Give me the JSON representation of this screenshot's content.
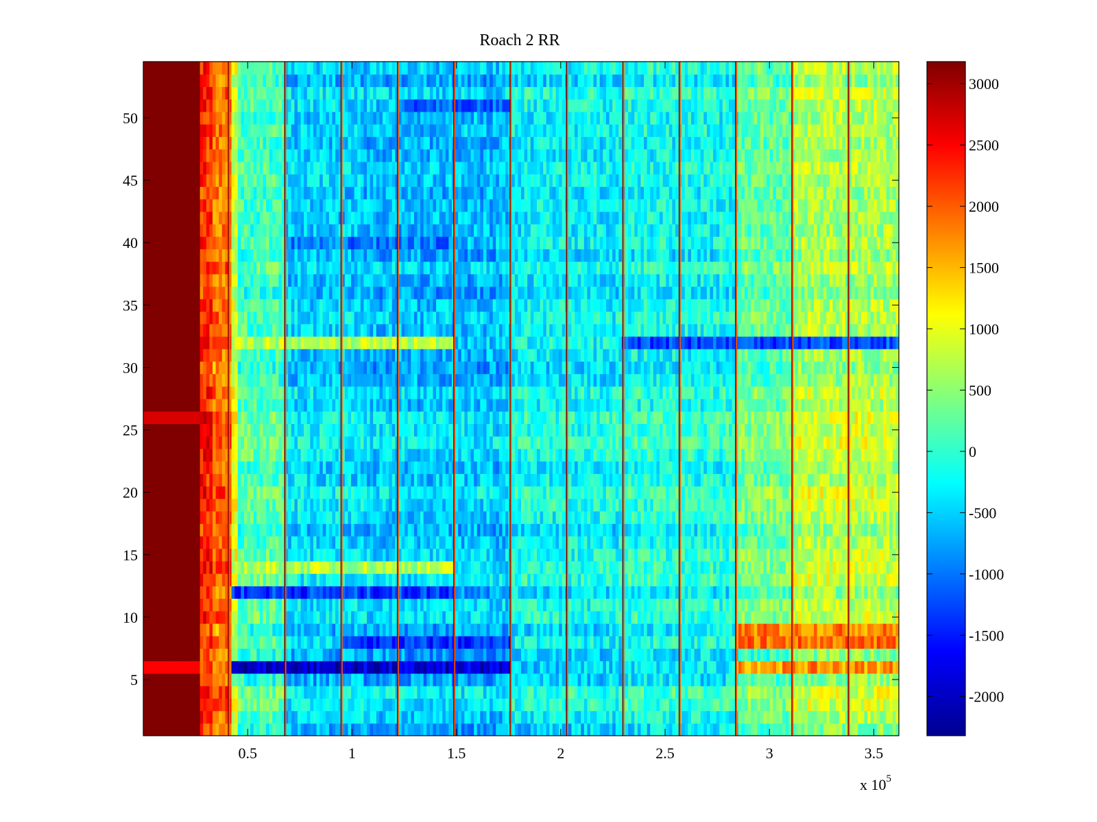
{
  "chart_data": {
    "type": "heatmap",
    "title": "Roach 2 RR",
    "xlabel": "",
    "ylabel": "",
    "x_multiplier_label": "x 10",
    "x_multiplier_exponent": "5",
    "xlim": [
      0,
      3.62
    ],
    "ylim": [
      0.5,
      54.5
    ],
    "x_ticks": [
      0.5,
      1,
      1.5,
      2,
      2.5,
      3,
      3.5
    ],
    "x_tick_labels": [
      "0.5",
      "1",
      "1.5",
      "2",
      "2.5",
      "3",
      "3.5"
    ],
    "y_ticks": [
      5,
      10,
      15,
      20,
      25,
      30,
      35,
      40,
      45,
      50
    ],
    "y_tick_labels": [
      "5",
      "10",
      "15",
      "20",
      "25",
      "30",
      "35",
      "40",
      "45",
      "50"
    ],
    "rows": 54,
    "colorbar": {
      "colormap": "jet",
      "clim": [
        -2320,
        3180
      ],
      "ticks": [
        -2000,
        -1500,
        -1000,
        -500,
        0,
        500,
        1000,
        1500,
        2000,
        2500,
        3000
      ],
      "tick_labels": [
        "-2000",
        "-1500",
        "-1000",
        "-500",
        "0",
        "500",
        "1000",
        "1500",
        "2000",
        "2500",
        "3000"
      ]
    },
    "column_bands": [
      {
        "x_start": 0.0,
        "x_end": 0.27,
        "value": 3180
      },
      {
        "x_start": 0.27,
        "x_end": 0.33,
        "value": 2300
      },
      {
        "x_start": 0.33,
        "x_end": 0.42,
        "value": 1900
      },
      {
        "x_start": 0.42,
        "x_end": 0.46,
        "value": 900
      },
      {
        "x_start": 0.46,
        "x_end": 0.68,
        "value": 150
      },
      {
        "x_start": 0.68,
        "x_end": 1.05,
        "value": -450
      },
      {
        "x_start": 1.05,
        "x_end": 1.75,
        "value": -550
      },
      {
        "x_start": 1.75,
        "x_end": 2.3,
        "value": -250
      },
      {
        "x_start": 2.3,
        "x_end": 2.85,
        "value": -150
      },
      {
        "x_start": 2.85,
        "x_end": 3.1,
        "value": 300
      },
      {
        "x_start": 3.1,
        "x_end": 3.62,
        "value": 700
      }
    ],
    "vertical_stripes_x": [
      0.41,
      0.68,
      0.95,
      1.22,
      1.49,
      1.76,
      2.03,
      2.3,
      2.57,
      2.84,
      3.11,
      3.38
    ],
    "notable_rows": [
      {
        "row": 6,
        "x_start": 0.42,
        "x_end": 1.76,
        "value": -1900
      },
      {
        "row": 6,
        "x_start": 2.84,
        "x_end": 3.62,
        "value": 1700
      },
      {
        "row": 8,
        "x_start": 0.95,
        "x_end": 1.76,
        "value": -1400
      },
      {
        "row": 8,
        "x_start": 2.84,
        "x_end": 3.62,
        "value": 1900
      },
      {
        "row": 9,
        "x_start": 2.84,
        "x_end": 3.62,
        "value": 1800
      },
      {
        "row": 12,
        "x_start": 0.42,
        "x_end": 1.49,
        "value": -1300
      },
      {
        "row": 14,
        "x_start": 0.42,
        "x_end": 1.49,
        "value": 700
      },
      {
        "row": 32,
        "x_start": 0.42,
        "x_end": 1.49,
        "value": 750
      },
      {
        "row": 32,
        "x_start": 2.3,
        "x_end": 3.62,
        "value": -1200
      },
      {
        "row": 26,
        "x_start": 0.0,
        "x_end": 0.27,
        "value": 2700
      },
      {
        "row": 6,
        "x_start": 0.0,
        "x_end": 0.27,
        "value": 2500
      },
      {
        "row": 40,
        "x_start": 0.68,
        "x_end": 1.49,
        "value": -1000
      },
      {
        "row": 51,
        "x_start": 1.22,
        "x_end": 1.76,
        "value": -1100
      }
    ]
  }
}
